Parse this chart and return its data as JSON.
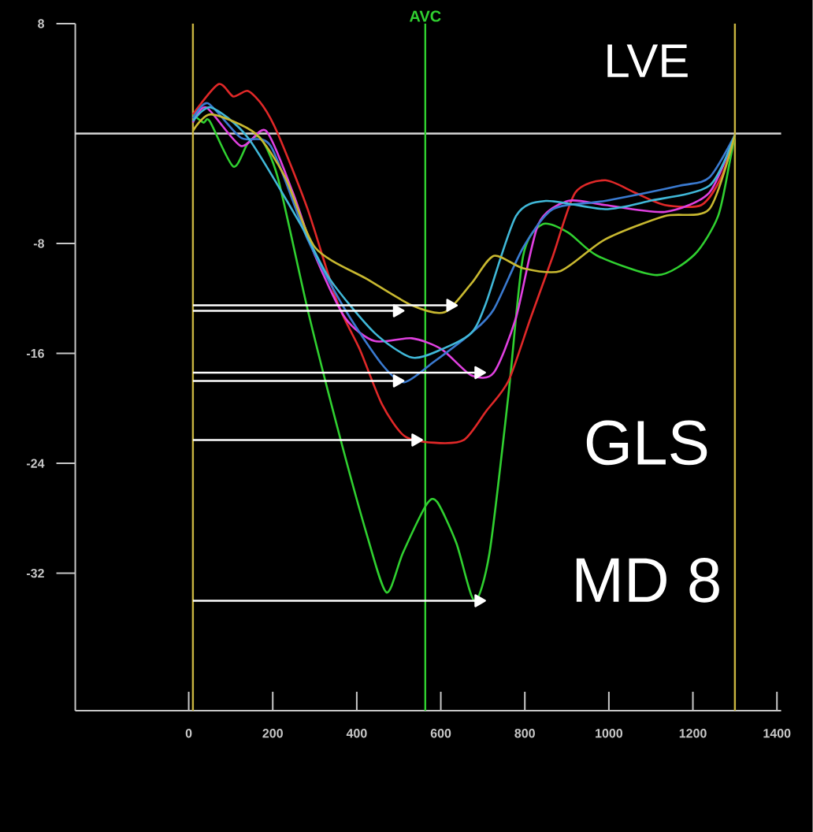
{
  "chart_data": {
    "type": "line",
    "annotations": [
      "LVE",
      "GLS",
      "MD 8"
    ],
    "xlim": [
      -270,
      1410
    ],
    "ylim": [
      -42,
      8
    ],
    "xticks": [
      0,
      200,
      400,
      600,
      800,
      1000,
      1200,
      1400
    ],
    "yticks": [
      8,
      -8,
      -16,
      -24,
      -32
    ],
    "ref_lines": [
      {
        "axis": "y",
        "value": 0,
        "color": "#d8d8d8"
      },
      {
        "axis": "x",
        "value": 10,
        "color": "#c8b440"
      },
      {
        "axis": "x",
        "value": 1300,
        "color": "#c8b440"
      },
      {
        "axis": "x",
        "value": 563,
        "label": "AVC",
        "color": "#30d030"
      }
    ],
    "series": [
      {
        "color": "#30d030",
        "x": [
          10,
          35,
          50,
          106,
          141,
          170,
          212,
          283,
          354,
          425,
          471,
          510,
          566,
          591,
          637,
          680,
          716,
          761,
          796,
          842,
          903,
          973,
          1115,
          1204,
          1260,
          1288,
          1300
        ],
        "values": [
          1.4,
          0.8,
          0.9,
          -2.4,
          -0.7,
          -0.3,
          -3.2,
          -12.8,
          -21.4,
          -29.3,
          -33.4,
          -30.5,
          -27,
          -26.8,
          -29.8,
          -34,
          -30.5,
          -19,
          -8.9,
          -6.6,
          -7.2,
          -8.9,
          -10.3,
          -8.8,
          -6,
          -2,
          -0.1
        ]
      },
      {
        "color": "#e02828",
        "x": [
          10,
          71,
          106,
          141,
          177,
          212,
          283,
          354,
          407,
          460,
          513,
          584,
          655,
          708,
          761,
          814,
          867,
          920,
          991,
          1062,
          1133,
          1220,
          1267,
          1300
        ],
        "values": [
          1.4,
          3.6,
          2.7,
          3.1,
          2.0,
          0,
          -5.5,
          -12.3,
          -15.7,
          -19.7,
          -22,
          -22.5,
          -22.3,
          -20.2,
          -18,
          -13.4,
          -8.9,
          -4.3,
          -3.4,
          -4.3,
          -5.2,
          -5.2,
          -3.2,
          -0.1
        ]
      },
      {
        "color": "#e040e0",
        "x": [
          10,
          42,
          124,
          184,
          248,
          301,
          372,
          442,
          531,
          602,
          673,
          726,
          779,
          832,
          903,
          991,
          1133,
          1239,
          1300
        ],
        "values": [
          0.8,
          1.9,
          -0.9,
          0.2,
          -4.3,
          -8.9,
          -13.4,
          -15.1,
          -14.9,
          -15.7,
          -17.6,
          -17.4,
          -13.4,
          -6.6,
          -4.9,
          -5.2,
          -5.7,
          -4.3,
          -0.1
        ]
      },
      {
        "color": "#3a7ad0",
        "x": [
          10,
          46,
          124,
          195,
          283,
          372,
          460,
          513,
          584,
          673,
          726,
          796,
          867,
          991,
          1168,
          1239,
          1300
        ],
        "values": [
          1.1,
          2.2,
          -0.3,
          -0.9,
          -7.7,
          -12.8,
          -16.8,
          -18.1,
          -16.6,
          -14.5,
          -12.8,
          -8.3,
          -5.5,
          -4.9,
          -3.8,
          -3.2,
          -0.1
        ]
      },
      {
        "color": "#40b8d8",
        "x": [
          10,
          53,
          141,
          266,
          336,
          442,
          531,
          602,
          673,
          708,
          779,
          850,
          991,
          1097,
          1239,
          1300
        ],
        "values": [
          0.9,
          1.9,
          -0.3,
          -6.6,
          -10.6,
          -14.5,
          -16.3,
          -15.7,
          -14.5,
          -12.3,
          -6,
          -4.9,
          -5.5,
          -4.9,
          -3.8,
          -0.1
        ]
      },
      {
        "color": "#c8b830",
        "x": [
          10,
          53,
          159,
          230,
          301,
          425,
          531,
          609,
          673,
          726,
          796,
          885,
          991,
          1133,
          1239,
          1300
        ],
        "values": [
          0.2,
          1.4,
          0,
          -3.2,
          -8.3,
          -10.6,
          -12.5,
          -13,
          -10.9,
          -8.9,
          -9.8,
          -10,
          -7.7,
          -6,
          -5.5,
          -0.1
        ]
      },
      {
        "color": "#ffffff",
        "marker": "triangle",
        "x": [
          10,
          623
        ],
        "values": [
          -12.5,
          -12.5
        ]
      },
      {
        "color": "#ffffff",
        "marker": "triangle",
        "x": [
          10,
          496
        ],
        "values": [
          -12.9,
          -12.9
        ]
      },
      {
        "color": "#ffffff",
        "marker": "triangle",
        "x": [
          10,
          690
        ],
        "values": [
          -17.4,
          -17.4
        ]
      },
      {
        "color": "#ffffff",
        "marker": "triangle",
        "x": [
          10,
          496
        ],
        "values": [
          -18.0,
          -18.0
        ]
      },
      {
        "color": "#ffffff",
        "marker": "triangle",
        "x": [
          10,
          540
        ],
        "values": [
          -22.3,
          -22.3
        ]
      },
      {
        "color": "#ffffff",
        "marker": "triangle",
        "x": [
          10,
          690
        ],
        "values": [
          -34,
          -34
        ]
      }
    ]
  }
}
